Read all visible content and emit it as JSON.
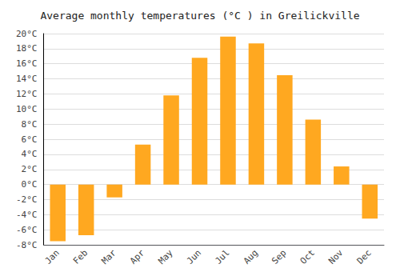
{
  "chart_data": {
    "type": "bar",
    "title": "Average monthly temperatures (°C ) in Greilickville",
    "categories": [
      "Jan",
      "Feb",
      "Mar",
      "Apr",
      "May",
      "Jun",
      "Jul",
      "Aug",
      "Sep",
      "Oct",
      "Nov",
      "Dec"
    ],
    "values": [
      -7.5,
      -6.7,
      -1.7,
      5.3,
      11.8,
      16.8,
      19.6,
      18.7,
      14.5,
      8.6,
      2.4,
      -4.5
    ],
    "color": "#FFA820",
    "ylim": [
      -8,
      20
    ],
    "yticks": [
      {
        "value": -8,
        "label": "-8°C"
      },
      {
        "value": -6,
        "label": "-6°C"
      },
      {
        "value": -4,
        "label": "-4°C"
      },
      {
        "value": -2,
        "label": "-2°C"
      },
      {
        "value": 0,
        "label": "0°C"
      },
      {
        "value": 2,
        "label": "2°C"
      },
      {
        "value": 4,
        "label": "4°C"
      },
      {
        "value": 6,
        "label": "6°C"
      },
      {
        "value": 8,
        "label": "8°C"
      },
      {
        "value": 10,
        "label": "10°C"
      },
      {
        "value": 12,
        "label": "12°C"
      },
      {
        "value": 14,
        "label": "14°C"
      },
      {
        "value": 16,
        "label": "16°C"
      },
      {
        "value": 18,
        "label": "18°C"
      },
      {
        "value": 20,
        "label": "20°C"
      }
    ],
    "grid": true
  }
}
